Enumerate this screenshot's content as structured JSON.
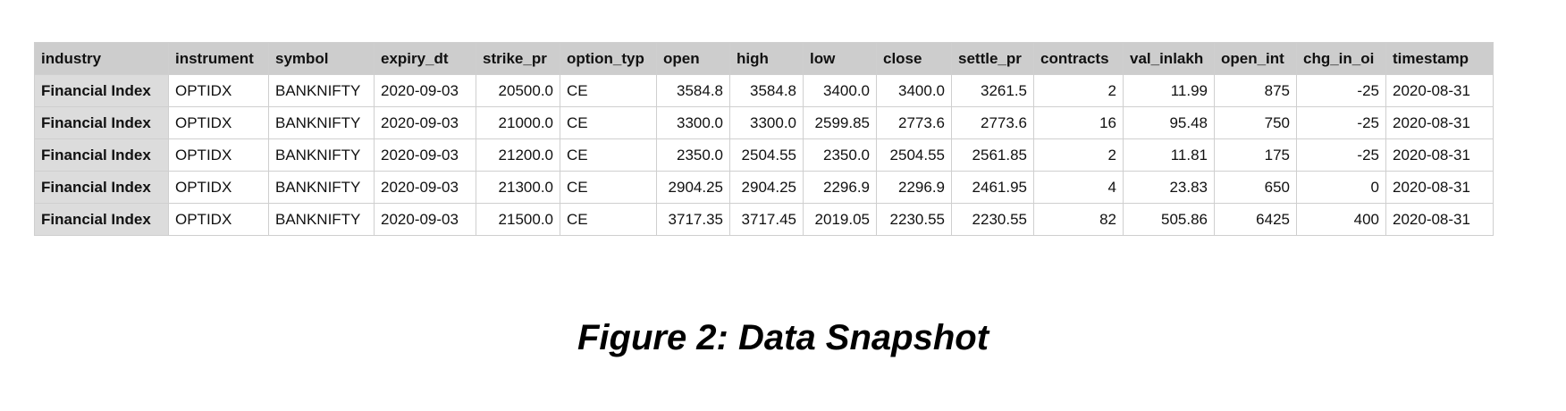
{
  "table": {
    "columns": [
      {
        "label": "industry",
        "width": 150,
        "align": "left",
        "header": true
      },
      {
        "label": "instrument",
        "width": 112,
        "align": "left"
      },
      {
        "label": "symbol",
        "width": 118,
        "align": "left"
      },
      {
        "label": "expiry_dt",
        "width": 114,
        "align": "left"
      },
      {
        "label": "strike_pr",
        "width": 94,
        "align": "right"
      },
      {
        "label": "option_typ",
        "width": 108,
        "align": "left"
      },
      {
        "label": "open",
        "width": 82,
        "align": "right"
      },
      {
        "label": "high",
        "width": 82,
        "align": "right"
      },
      {
        "label": "low",
        "width": 82,
        "align": "right"
      },
      {
        "label": "close",
        "width": 84,
        "align": "right"
      },
      {
        "label": "settle_pr",
        "width": 92,
        "align": "right"
      },
      {
        "label": "contracts",
        "width": 100,
        "align": "right"
      },
      {
        "label": "val_inlakh",
        "width": 102,
        "align": "right"
      },
      {
        "label": "open_int",
        "width": 92,
        "align": "right"
      },
      {
        "label": "chg_in_oi",
        "width": 100,
        "align": "right"
      },
      {
        "label": "timestamp",
        "width": 120,
        "align": "left"
      }
    ],
    "rows": [
      [
        "Financial Index",
        "OPTIDX",
        "BANKNIFTY",
        "2020-09-03",
        "20500.0",
        "CE",
        "3584.8",
        "3584.8",
        "3400.0",
        "3400.0",
        "3261.5",
        "2",
        "11.99",
        "875",
        "-25",
        "2020-08-31"
      ],
      [
        "Financial Index",
        "OPTIDX",
        "BANKNIFTY",
        "2020-09-03",
        "21000.0",
        "CE",
        "3300.0",
        "3300.0",
        "2599.85",
        "2773.6",
        "2773.6",
        "16",
        "95.48",
        "750",
        "-25",
        "2020-08-31"
      ],
      [
        "Financial Index",
        "OPTIDX",
        "BANKNIFTY",
        "2020-09-03",
        "21200.0",
        "CE",
        "2350.0",
        "2504.55",
        "2350.0",
        "2504.55",
        "2561.85",
        "2",
        "11.81",
        "175",
        "-25",
        "2020-08-31"
      ],
      [
        "Financial Index",
        "OPTIDX",
        "BANKNIFTY",
        "2020-09-03",
        "21300.0",
        "CE",
        "2904.25",
        "2904.25",
        "2296.9",
        "2296.9",
        "2461.95",
        "4",
        "23.83",
        "650",
        "0",
        "2020-08-31"
      ],
      [
        "Financial Index",
        "OPTIDX",
        "BANKNIFTY",
        "2020-09-03",
        "21500.0",
        "CE",
        "3717.35",
        "3717.45",
        "2019.05",
        "2230.55",
        "2230.55",
        "82",
        "505.86",
        "6425",
        "400",
        "2020-08-31"
      ]
    ]
  },
  "caption": "Figure 2: Data Snapshot"
}
